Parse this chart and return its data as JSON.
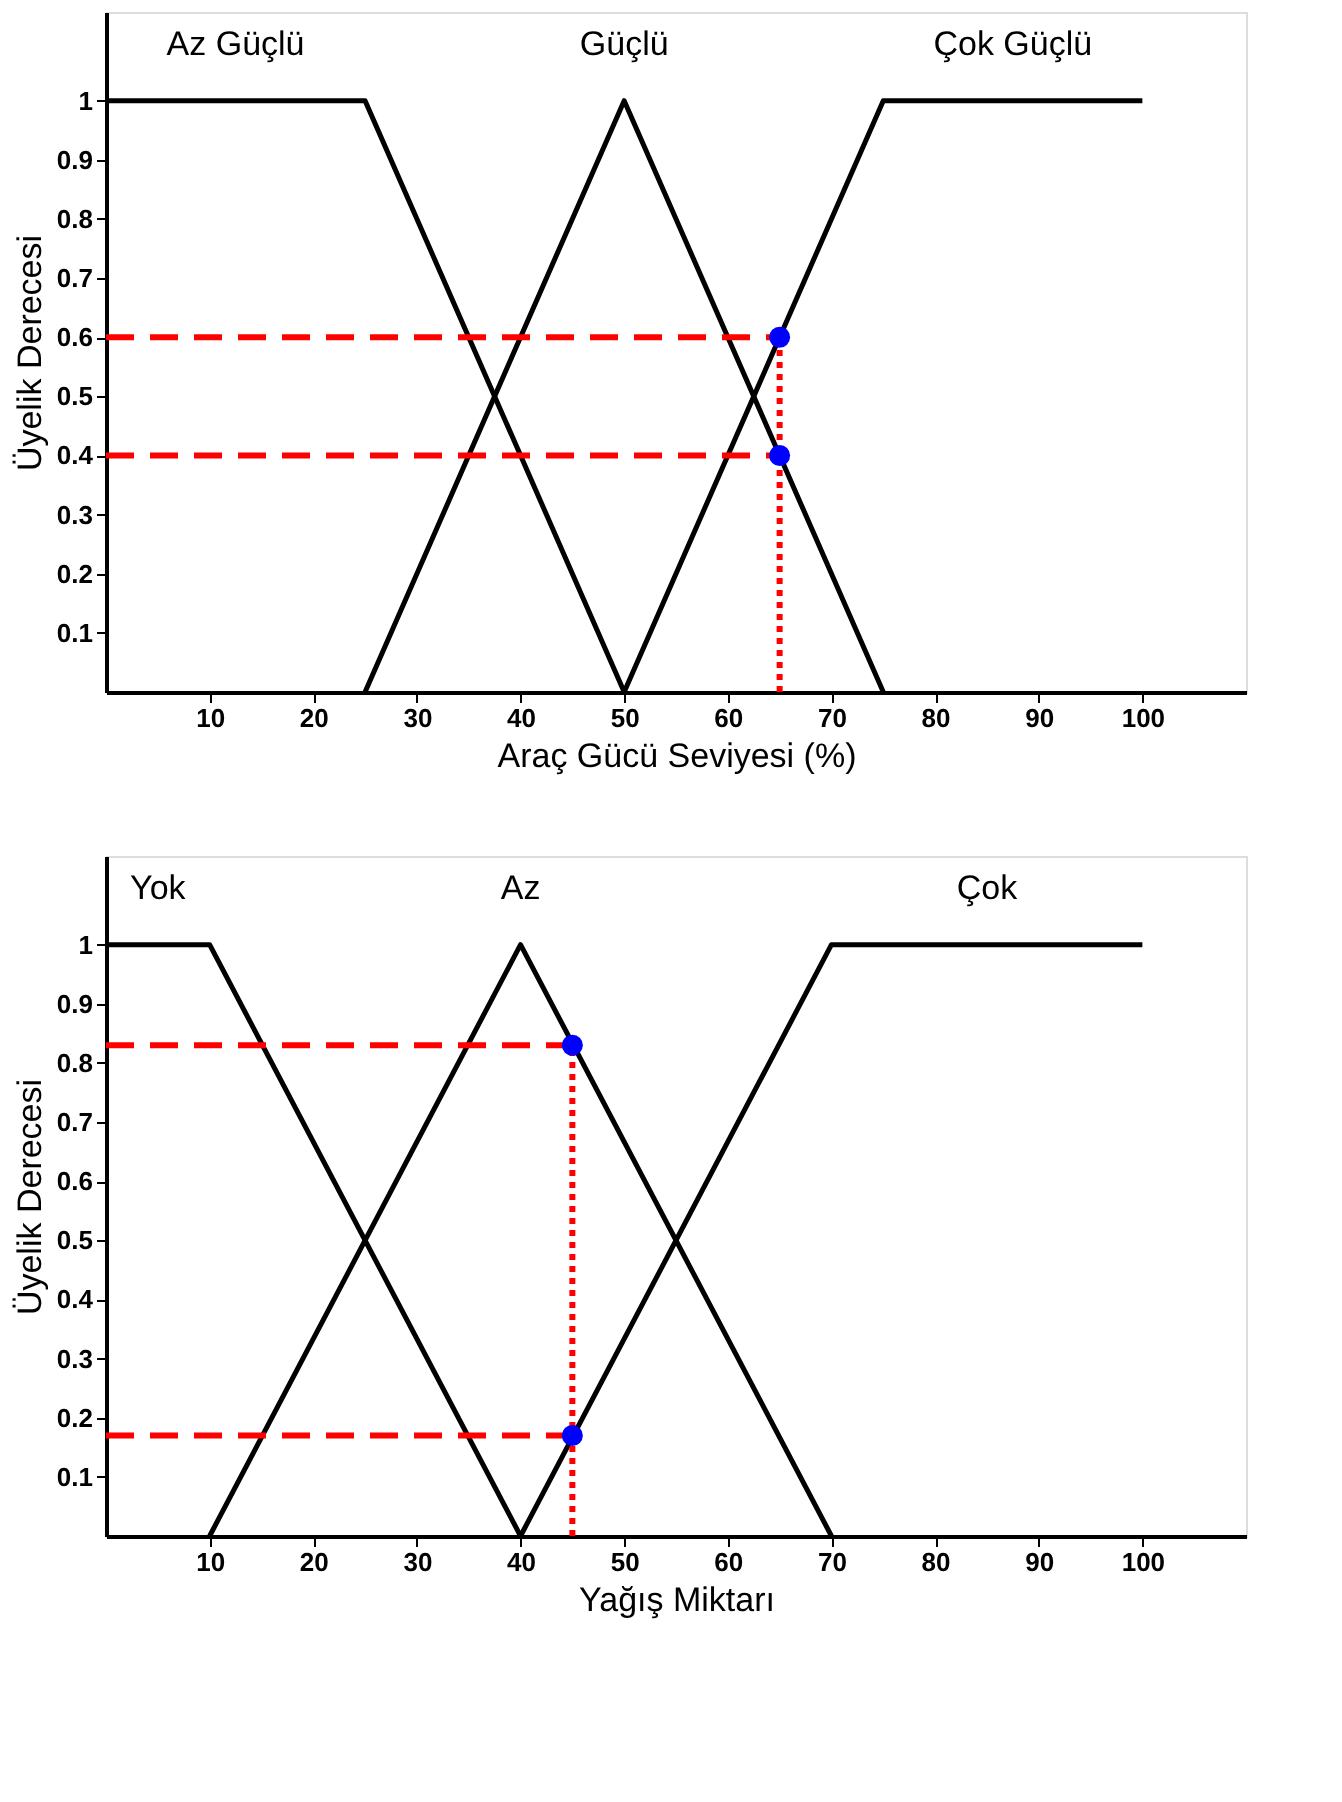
{
  "chart_data": [
    {
      "type": "line",
      "xlabel": "Araç Gücü Seviyesi (%)",
      "ylabel": "Üyelik Derecesi",
      "xlim": [
        0,
        110
      ],
      "ylim": [
        0,
        1.15
      ],
      "xticks": [
        10,
        20,
        30,
        40,
        50,
        60,
        70,
        80,
        90,
        100
      ],
      "yticks": [
        0.1,
        0.2,
        0.3,
        0.4,
        0.5,
        0.6,
        0.7,
        0.8,
        0.9,
        1
      ],
      "grid": false,
      "series": [
        {
          "name": "Az Güçlü",
          "color": "#000000",
          "x": [
            0,
            25,
            50
          ],
          "values": [
            1,
            1,
            0
          ]
        },
        {
          "name": "Güçlü",
          "color": "#000000",
          "x": [
            25,
            50,
            75
          ],
          "values": [
            0,
            1,
            0
          ]
        },
        {
          "name": "Çok Güçlü",
          "color": "#000000",
          "x": [
            50,
            75,
            100
          ],
          "values": [
            0,
            1,
            1
          ]
        },
        {
          "color": "#ff0000",
          "line_style": "dashed",
          "x": [
            0,
            65
          ],
          "values": [
            0.6,
            0.6
          ]
        },
        {
          "color": "#ff0000",
          "line_style": "dashed",
          "x": [
            0,
            65
          ],
          "values": [
            0.4,
            0.4
          ]
        },
        {
          "color": "#ff0000",
          "line_style": "dotted",
          "x": [
            65,
            65
          ],
          "values": [
            0,
            0.6
          ]
        },
        {
          "type": "scatter",
          "color": "#0000ff",
          "marker": "circle",
          "x": [
            65,
            65
          ],
          "values": [
            0.6,
            0.4
          ]
        }
      ]
    },
    {
      "type": "line",
      "xlabel": "Yağış Miktarı",
      "ylabel": "Üyelik Derecesi",
      "xlim": [
        0,
        110
      ],
      "ylim": [
        0,
        1.15
      ],
      "xticks": [
        10,
        20,
        30,
        40,
        50,
        60,
        70,
        80,
        90,
        100
      ],
      "yticks": [
        0.1,
        0.2,
        0.3,
        0.4,
        0.5,
        0.6,
        0.7,
        0.8,
        0.9,
        1
      ],
      "grid": false,
      "series": [
        {
          "name": "Yok",
          "color": "#000000",
          "x": [
            0,
            10,
            40
          ],
          "values": [
            1,
            1,
            0
          ]
        },
        {
          "name": "Az",
          "color": "#000000",
          "x": [
            10,
            40,
            70
          ],
          "values": [
            0,
            1,
            0
          ]
        },
        {
          "name": "Çok",
          "color": "#000000",
          "x": [
            40,
            70,
            100
          ],
          "values": [
            0,
            1,
            1
          ]
        },
        {
          "color": "#ff0000",
          "line_style": "dashed",
          "x": [
            0,
            45
          ],
          "values": [
            0.83,
            0.83
          ]
        },
        {
          "color": "#ff0000",
          "line_style": "dashed",
          "x": [
            0,
            45
          ],
          "values": [
            0.17,
            0.17
          ]
        },
        {
          "color": "#ff0000",
          "line_style": "dotted",
          "x": [
            45,
            45
          ],
          "values": [
            0,
            0.83
          ]
        },
        {
          "type": "scatter",
          "color": "#0000ff",
          "marker": "circle",
          "x": [
            45,
            45
          ],
          "values": [
            0.83,
            0.17
          ]
        }
      ]
    }
  ]
}
